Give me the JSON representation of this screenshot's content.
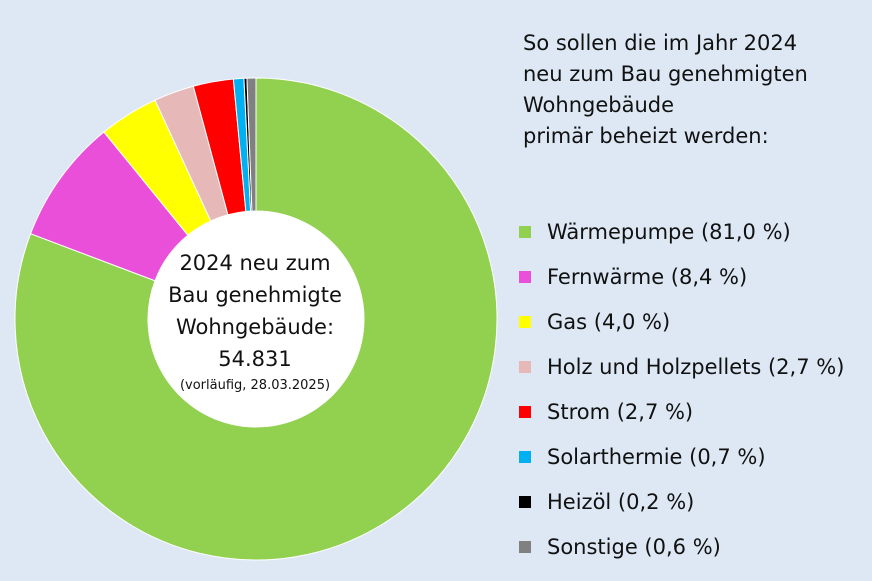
{
  "chart_data": {
    "type": "pie",
    "title_lines": [
      "So sollen die im Jahr 2024",
      "neu zum Bau genehmigten",
      "Wohngebäude",
      "primär beheizt werden:"
    ],
    "center_label": {
      "lines": [
        "2024 neu zum",
        "Bau genehmigte",
        "Wohngebäude:",
        "54.831"
      ],
      "note": "(vorläufig, 28.03.2025)"
    },
    "slices": [
      {
        "label": "Wärmepumpe (81,0 %)",
        "value": 81.0,
        "color": "#92d050"
      },
      {
        "label": "Fernwärme (8,4 %)",
        "value": 8.4,
        "color": "#e94fd8"
      },
      {
        "label": "Gas (4,0 %)",
        "value": 4.0,
        "color": "#ffff00"
      },
      {
        "label": "Holz und Holzpellets (2,7 %)",
        "value": 2.7,
        "color": "#e6b9b8"
      },
      {
        "label": "Strom  (2,7 %)",
        "value": 2.7,
        "color": "#ff0000"
      },
      {
        "label": "Solarthermie (0,7 %)",
        "value": 0.7,
        "color": "#00b0f0"
      },
      {
        "label": "Heizöl (0,2 %)",
        "value": 0.2,
        "color": "#000000"
      },
      {
        "label": "Sonstige (0,6 %)",
        "value": 0.6,
        "color": "#808080"
      }
    ],
    "legend_position": "right"
  }
}
